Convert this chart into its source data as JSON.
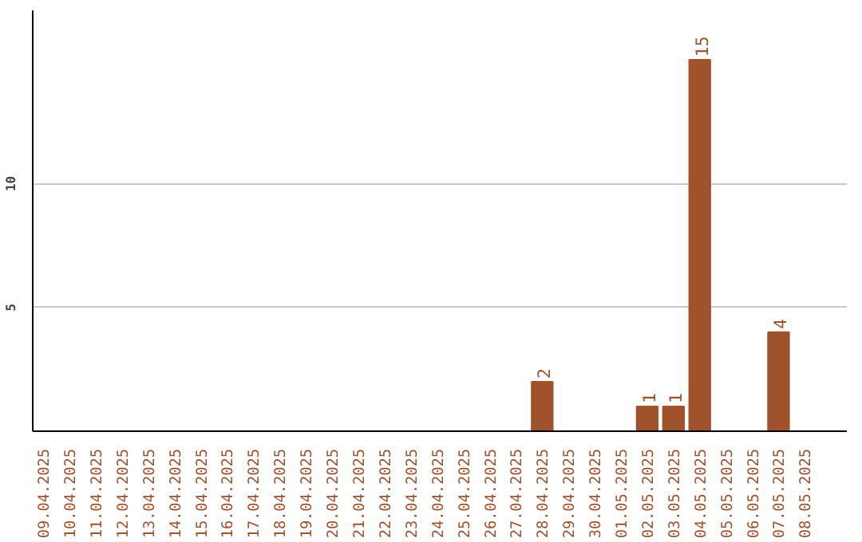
{
  "chart_data": {
    "type": "bar",
    "categories": [
      "09.04.2025",
      "10.04.2025",
      "11.04.2025",
      "12.04.2025",
      "13.04.2025",
      "14.04.2025",
      "15.04.2025",
      "16.04.2025",
      "17.04.2025",
      "18.04.2025",
      "19.04.2025",
      "20.04.2025",
      "21.04.2025",
      "22.04.2025",
      "23.04.2025",
      "24.04.2025",
      "25.04.2025",
      "26.04.2025",
      "27.04.2025",
      "28.04.2025",
      "29.04.2025",
      "30.04.2025",
      "01.05.2025",
      "02.05.2025",
      "03.05.2025",
      "04.05.2025",
      "05.05.2025",
      "06.05.2025",
      "07.05.2025",
      "08.05.2025"
    ],
    "values": [
      0,
      0,
      0,
      0,
      0,
      0,
      0,
      0,
      0,
      0,
      0,
      0,
      0,
      0,
      0,
      0,
      0,
      0,
      0,
      2,
      0,
      0,
      0,
      1,
      1,
      15,
      0,
      0,
      4,
      0
    ],
    "value_labels": [
      null,
      null,
      null,
      null,
      null,
      null,
      null,
      null,
      null,
      null,
      null,
      null,
      null,
      null,
      null,
      null,
      null,
      null,
      null,
      "2",
      null,
      null,
      null,
      "1",
      "1",
      "15",
      null,
      null,
      "4",
      null
    ],
    "color": "#a0522d",
    "ylim": [
      0,
      17
    ],
    "yticks": [
      5,
      10
    ],
    "grid": "y"
  }
}
